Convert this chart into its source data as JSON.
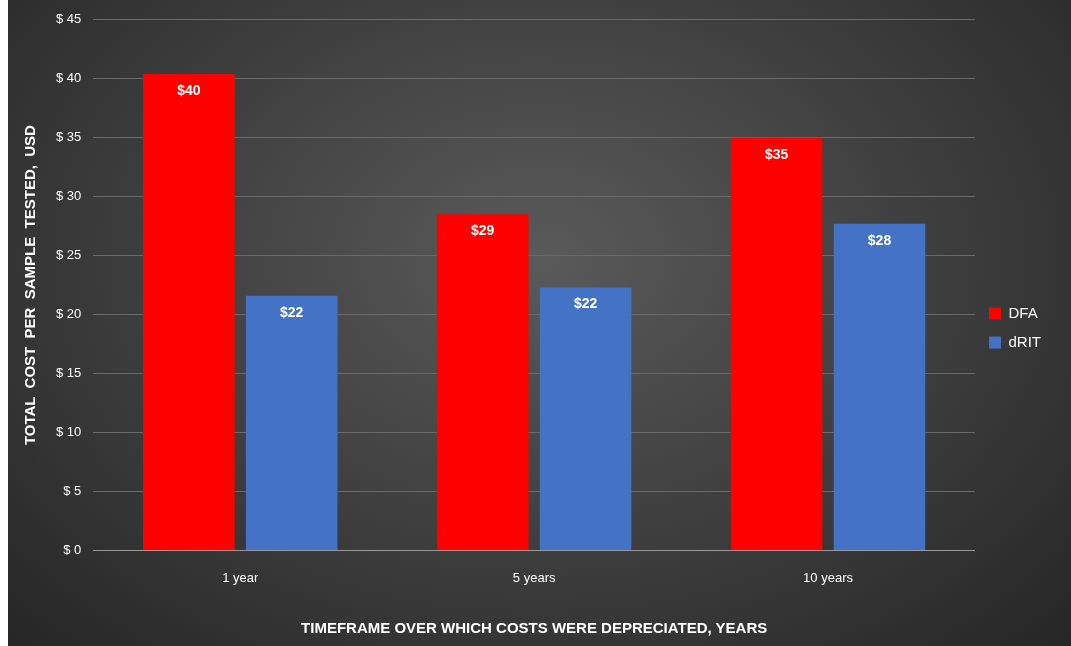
{
  "chart_data": {
    "type": "bar",
    "xlabel": "TIMEFRAME OVER WHICH COSTS WERE DEPRECIATED, YEARS",
    "ylabel": "TOTAL  COST  PER  SAMPLE  TESTED,  USD",
    "categories": [
      "1 year",
      "5 years",
      "10 years"
    ],
    "series": [
      {
        "name": "DFA",
        "color": "#ff0000",
        "values": [
          40.4,
          28.5,
          35.0
        ],
        "value_labels": [
          "$40",
          "$29",
          "$35"
        ]
      },
      {
        "name": "dRIT",
        "color": "#4472c4",
        "values": [
          21.6,
          22.3,
          27.7
        ],
        "value_labels": [
          "$22",
          "$22",
          "$28"
        ]
      }
    ],
    "ylim": [
      0,
      45
    ],
    "yticks": [
      {
        "value": 0,
        "label": "$ 0"
      },
      {
        "value": 5,
        "label": "$ 5"
      },
      {
        "value": 10,
        "label": "$ 10"
      },
      {
        "value": 15,
        "label": "$ 15"
      },
      {
        "value": 20,
        "label": "$ 20"
      },
      {
        "value": 25,
        "label": "$ 25"
      },
      {
        "value": 30,
        "label": "$ 30"
      },
      {
        "value": 35,
        "label": "$ 35"
      },
      {
        "value": 40,
        "label": "$ 40"
      },
      {
        "value": 45,
        "label": "$ 45"
      }
    ],
    "grid": "y",
    "legend": "right"
  }
}
